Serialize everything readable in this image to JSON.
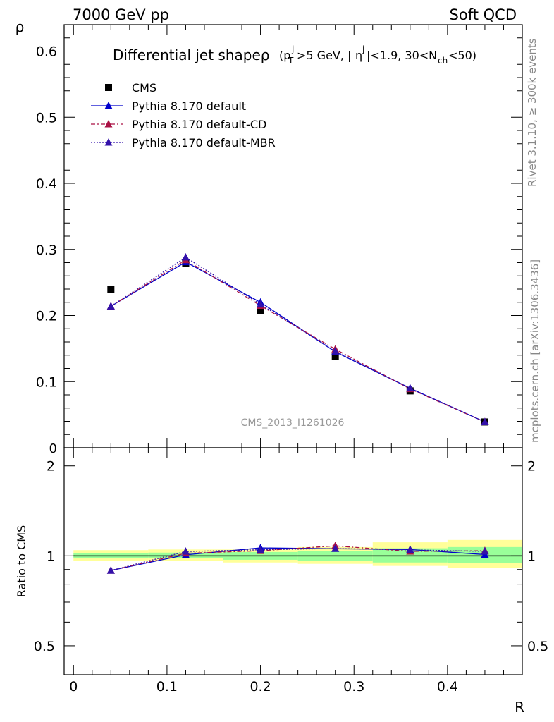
{
  "header": {
    "left": "7000 GeV pp",
    "right": "Soft QCD"
  },
  "side_labels": {
    "rivet": "Rivet 3.1.10, ≥ 300k events",
    "mcplots": "mcplots.cern.ch [arXiv:1306.3436]"
  },
  "chart_data": [
    {
      "type": "scatter",
      "title": "Differential jet shapeρ (p_T^j>5 GeV, |η^j|<1.9, 30<N_ch<50)",
      "title_main": "Differential jet shapeρ",
      "title_sub": "(p",
      "analysis_label": "CMS_2013_I1261026",
      "ylabel": "ρ",
      "xlim": [
        -0.01,
        0.48
      ],
      "ylim": [
        0,
        0.64
      ],
      "yticks": [
        0.1,
        0.2,
        0.3,
        0.4,
        0.5,
        0.6
      ],
      "ytick_labels": [
        "0.1",
        "0.2",
        "0.3",
        "0.4",
        "0.5",
        "0.6"
      ],
      "y_bottom_label": "0",
      "legend_position": "top-left",
      "x": [
        0.04,
        0.12,
        0.2,
        0.28,
        0.36,
        0.44
      ],
      "series": [
        {
          "name": "CMS",
          "marker": "square",
          "line": "none",
          "color": "#000000",
          "values": [
            0.24,
            0.279,
            0.207,
            0.138,
            0.086,
            0.039
          ]
        },
        {
          "name": "Pythia 8.170 default",
          "marker": "triangle",
          "line": "solid",
          "color": "#0000cc",
          "values": [
            0.214,
            0.281,
            0.22,
            0.145,
            0.09,
            0.039
          ]
        },
        {
          "name": "Pythia 8.170 default-CD",
          "marker": "triangle",
          "line": "dashdot",
          "color": "#aa1144",
          "values": [
            0.214,
            0.284,
            0.215,
            0.149,
            0.089,
            0.039
          ]
        },
        {
          "name": "Pythia 8.170 default-MBR",
          "marker": "triangle",
          "line": "dotted",
          "color": "#3311aa",
          "values": [
            0.214,
            0.288,
            0.217,
            0.146,
            0.09,
            0.039
          ]
        }
      ]
    },
    {
      "type": "scatter",
      "ylabel": "Ratio to CMS",
      "xlabel": "R",
      "xlim": [
        -0.01,
        0.48
      ],
      "ylim": [
        0.4,
        2.3
      ],
      "yticks": [
        0.5,
        1,
        2
      ],
      "ytick_labels": [
        "0.5",
        "1",
        "2"
      ],
      "xticks": [
        0,
        0.1,
        0.2,
        0.3,
        0.4
      ],
      "xtick_labels": [
        "0",
        "0.1",
        "0.2",
        "0.3",
        "0.4"
      ],
      "x": [
        0.04,
        0.12,
        0.2,
        0.28,
        0.36,
        0.44
      ],
      "bins": [
        [
          0.0,
          0.08
        ],
        [
          0.08,
          0.16
        ],
        [
          0.16,
          0.24
        ],
        [
          0.24,
          0.32
        ],
        [
          0.32,
          0.4
        ],
        [
          0.4,
          0.48
        ]
      ],
      "band_inner": [
        [
          0.98,
          1.02
        ],
        [
          0.98,
          1.025
        ],
        [
          0.97,
          1.03
        ],
        [
          0.96,
          1.04
        ],
        [
          0.95,
          1.06
        ],
        [
          0.945,
          1.07
        ]
      ],
      "band_outer": [
        [
          0.96,
          1.045
        ],
        [
          0.96,
          1.05
        ],
        [
          0.95,
          1.05
        ],
        [
          0.94,
          1.07
        ],
        [
          0.925,
          1.11
        ],
        [
          0.91,
          1.13
        ]
      ],
      "band_colors": {
        "inner": "#99ff99",
        "outer": "#ffff99"
      },
      "series": [
        {
          "name": "Pythia 8.170 default",
          "color": "#0000cc",
          "line": "solid",
          "values": [
            0.893,
            1.008,
            1.063,
            1.056,
            1.05,
            1.01
          ]
        },
        {
          "name": "Pythia 8.170 default-CD",
          "color": "#aa1144",
          "line": "dashdot",
          "values": [
            0.893,
            1.02,
            1.04,
            1.08,
            1.035,
            1.04
          ]
        },
        {
          "name": "Pythia 8.170 default-MBR",
          "color": "#3311aa",
          "line": "dotted",
          "values": [
            0.893,
            1.034,
            1.048,
            1.058,
            1.047,
            1.035
          ]
        }
      ]
    }
  ]
}
